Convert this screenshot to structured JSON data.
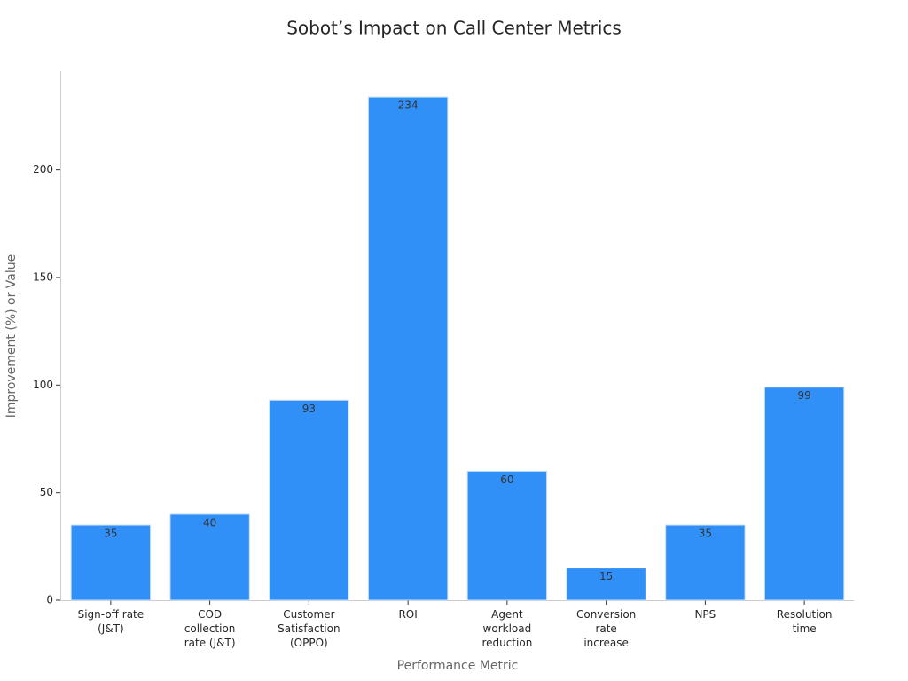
{
  "chart_data": {
    "type": "bar",
    "title": "Sobot’s Impact on Call Center Metrics",
    "x_label": "Performance Metric",
    "y_label": "Improvement (%) or Value",
    "categories": [
      "Sign-off rate (J&T)",
      "COD collection rate (J&T)",
      "Customer Satisfaction (OPPO)",
      "ROI",
      "Agent workload reduction",
      "Conversion rate increase",
      "NPS",
      "Resolution time"
    ],
    "values": [
      35,
      40,
      93,
      234,
      60,
      15,
      35,
      99
    ],
    "color": "#3090f8",
    "ylim": [
      0,
      246
    ],
    "yticks": [
      0,
      50,
      100,
      150,
      200
    ],
    "grid": false
  }
}
